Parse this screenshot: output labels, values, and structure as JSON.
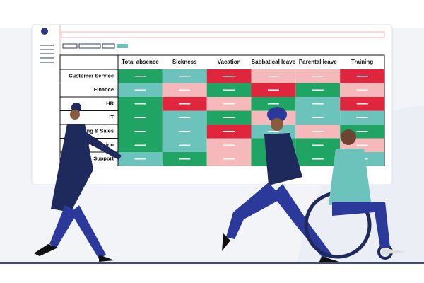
{
  "table": {
    "columns": [
      "Total absence",
      "Sickness",
      "Vacation",
      "Sabbatical leave",
      "Parental leave",
      "Training"
    ],
    "rows": [
      "Customer Service",
      "Finance",
      "HR",
      "IT",
      "Marketing & Sales",
      "Production",
      "Support"
    ],
    "cell_colors": [
      [
        "#1fa463",
        "#6cc3bc",
        "#e0263c",
        "#f5b8bb",
        "#f5b8bb",
        "#e0263c"
      ],
      [
        "#6cc3bc",
        "#f5b8bb",
        "#1fa463",
        "#e0263c",
        "#1fa463",
        "#f5b8bb"
      ],
      [
        "#1fa463",
        "#e0263c",
        "#f5b8bb",
        "#1fa463",
        "#6cc3bc",
        "#e0263c"
      ],
      [
        "#1fa463",
        "#6cc3bc",
        "#1fa463",
        "#f5b8bb",
        "#6cc3bc",
        "#6cc3bc"
      ],
      [
        "#1fa463",
        "#6cc3bc",
        "#e0263c",
        "#6cc3bc",
        "#f5b8bb",
        "#1fa463"
      ],
      [
        "#1fa463",
        "#6cc3bc",
        "#f5b8bb",
        "#1fa463",
        "#1fa463",
        "#f5b8bb"
      ],
      [
        "#6cc3bc",
        "#1fa463",
        "#f5b8bb",
        "#1fa463",
        "#1fa463",
        "#6cc3bc"
      ]
    ]
  }
}
